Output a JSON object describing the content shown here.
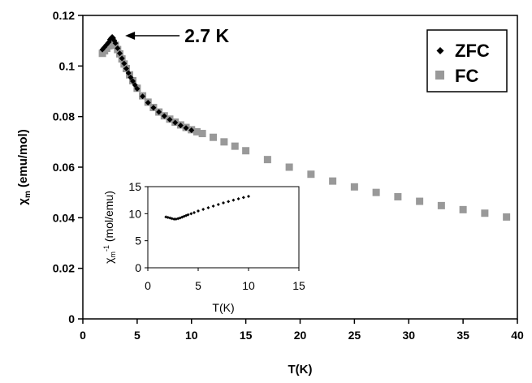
{
  "chart_data": {
    "type": "scatter",
    "xlabel": "T(K)",
    "ylabel": "χm (emu/mol)",
    "ylabel_main": "χ",
    "ylabel_sub": "m",
    "ylabel_rest": " (emu/mol)",
    "xlim": [
      0,
      40
    ],
    "ylim": [
      0,
      0.12
    ],
    "x_ticks": [
      0,
      5,
      10,
      15,
      20,
      25,
      30,
      35,
      40
    ],
    "y_ticks": [
      0,
      0.02,
      0.04,
      0.06,
      0.08,
      0.1,
      0.12
    ],
    "x_tick_labels": [
      "0",
      "5",
      "10",
      "15",
      "20",
      "25",
      "30",
      "35",
      "40"
    ],
    "y_tick_labels": [
      "0",
      "0.02",
      "0.04",
      "0.06",
      "0.08",
      "0.1",
      "0.12"
    ],
    "legend_position": "top-right",
    "grid": false,
    "annotation": {
      "text": "2.7 K",
      "x": 2.7,
      "y": 0.111
    },
    "series": [
      {
        "name": "ZFC",
        "marker": "diamond",
        "color": "#000000",
        "x": [
          1.8,
          2.0,
          2.2,
          2.4,
          2.5,
          2.6,
          2.7,
          2.8,
          2.9,
          3.0,
          3.2,
          3.4,
          3.6,
          3.8,
          4.0,
          4.2,
          4.4,
          4.6,
          4.8,
          5.0,
          5.5,
          6.0,
          6.5,
          7.0,
          7.5,
          8.0,
          8.5,
          9.0,
          9.5,
          10.0
        ],
        "y": [
          0.1065,
          0.1075,
          0.1085,
          0.1095,
          0.1105,
          0.111,
          0.1115,
          0.111,
          0.11,
          0.109,
          0.107,
          0.105,
          0.103,
          0.101,
          0.099,
          0.0972,
          0.0955,
          0.094,
          0.0925,
          0.091,
          0.088,
          0.0855,
          0.0835,
          0.0818,
          0.0802,
          0.0788,
          0.0776,
          0.0765,
          0.0755,
          0.0746
        ]
      },
      {
        "name": "FC",
        "marker": "square",
        "color": "#999999",
        "x": [
          1.8,
          2.0,
          2.2,
          2.4,
          2.6,
          2.8,
          3.0,
          3.2,
          3.4,
          3.6,
          3.8,
          4.0,
          4.3,
          4.6,
          5.0,
          5.5,
          6.0,
          6.5,
          7.0,
          7.5,
          8.0,
          8.5,
          9.0,
          9.5,
          10.0,
          10.5,
          11.0,
          12.0,
          13.0,
          14.0,
          15.0,
          17.0,
          19.0,
          21.0,
          23.0,
          25.0,
          27.0,
          29.0,
          31.0,
          33.0,
          35.0,
          37.0,
          39.0
        ],
        "y": [
          0.105,
          0.106,
          0.107,
          0.108,
          0.109,
          0.109,
          0.1082,
          0.1065,
          0.1048,
          0.1028,
          0.1008,
          0.099,
          0.0965,
          0.0942,
          0.0912,
          0.0882,
          0.0857,
          0.0836,
          0.0818,
          0.0803,
          0.079,
          0.0778,
          0.0767,
          0.0757,
          0.0748,
          0.074,
          0.0733,
          0.0718,
          0.07,
          0.0683,
          0.0665,
          0.063,
          0.06,
          0.0572,
          0.0545,
          0.0522,
          0.05,
          0.0483,
          0.0465,
          0.0448,
          0.0432,
          0.0418,
          0.0403
        ]
      }
    ],
    "inset": {
      "type": "scatter",
      "xlabel": "T(K)",
      "ylabel": "χm-1 (mol/emu)",
      "ylabel_main": "χ",
      "ylabel_sub": "m",
      "ylabel_sup": "-1",
      "ylabel_rest": " (mol/emu)",
      "xlim": [
        0,
        15
      ],
      "ylim": [
        0,
        15
      ],
      "x_ticks": [
        0,
        5,
        10,
        15
      ],
      "y_ticks": [
        0,
        5,
        10,
        15
      ],
      "x_tick_labels": [
        "0",
        "5",
        "10",
        "15"
      ],
      "y_tick_labels": [
        "0",
        "5",
        "10",
        "15"
      ],
      "x": [
        1.8,
        2.0,
        2.2,
        2.4,
        2.6,
        2.8,
        3.0,
        3.2,
        3.4,
        3.6,
        3.8,
        4.0,
        4.3,
        4.6,
        5.0,
        5.5,
        6.0,
        6.5,
        7.0,
        7.5,
        8.0,
        8.5,
        9.0,
        9.5,
        10.0
      ],
      "y": [
        9.4,
        9.3,
        9.2,
        9.1,
        9.0,
        9.0,
        9.1,
        9.2,
        9.35,
        9.5,
        9.65,
        9.8,
        10.0,
        10.2,
        10.5,
        10.8,
        11.1,
        11.4,
        11.7,
        12.0,
        12.25,
        12.5,
        12.75,
        13.0,
        13.2
      ]
    }
  }
}
